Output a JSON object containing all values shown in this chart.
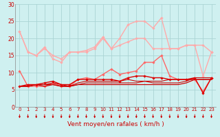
{
  "xlabel": "Vent moyen/en rafales ( km/h )",
  "bg_color": "#cff0f0",
  "grid_color": "#aad4d4",
  "x_values": [
    0,
    1,
    2,
    3,
    4,
    5,
    6,
    7,
    8,
    9,
    10,
    11,
    12,
    13,
    14,
    15,
    16,
    17,
    18,
    19,
    20,
    21,
    22,
    23
  ],
  "series": [
    {
      "color": "#ffaaaa",
      "linewidth": 1.0,
      "marker": "D",
      "markersize": 1.8,
      "data": [
        22,
        16,
        15,
        17,
        15,
        14,
        16,
        16,
        16,
        17,
        20,
        17,
        18,
        19,
        20,
        20,
        17,
        17,
        17,
        17,
        18,
        18,
        18,
        16
      ]
    },
    {
      "color": "#ffaaaa",
      "linewidth": 1.0,
      "marker": "D",
      "markersize": 1.8,
      "data": [
        22,
        16,
        15,
        17.5,
        14,
        13,
        16,
        16,
        16.5,
        17.5,
        20.5,
        17,
        20,
        24,
        25,
        25,
        23,
        26,
        17,
        17,
        18,
        18,
        9,
        16
      ]
    },
    {
      "color": "#ff6666",
      "linewidth": 1.0,
      "marker": "D",
      "markersize": 1.8,
      "data": [
        10.5,
        6,
        6,
        6,
        7,
        6,
        6,
        8,
        8.5,
        8,
        9.5,
        11,
        9.5,
        10,
        10.5,
        13,
        13,
        15,
        9,
        8,
        8,
        8,
        4.5,
        8.5
      ]
    },
    {
      "color": "#cc0000",
      "linewidth": 0.9,
      "marker": null,
      "markersize": 0,
      "data": [
        6,
        6,
        6.5,
        6,
        6.5,
        6,
        6,
        6.5,
        6.5,
        6.5,
        6.5,
        6.5,
        6.5,
        6.5,
        6.5,
        6.5,
        6.5,
        6.5,
        6.5,
        6.5,
        7,
        8,
        8,
        8
      ]
    },
    {
      "color": "#cc0000",
      "linewidth": 0.8,
      "marker": null,
      "markersize": 0,
      "data": [
        6,
        6,
        6.5,
        6.5,
        6.5,
        6,
        6,
        6.5,
        7,
        7,
        7,
        7,
        7,
        7,
        7,
        7.5,
        7,
        7,
        7,
        7,
        7.5,
        8.5,
        8.5,
        8.5
      ]
    },
    {
      "color": "#cc0000",
      "linewidth": 0.8,
      "marker": null,
      "markersize": 0,
      "data": [
        6,
        6,
        6.5,
        6.5,
        7,
        6.5,
        6,
        7,
        7.5,
        7.5,
        7.5,
        7.5,
        7.5,
        8,
        7.5,
        7.5,
        7.5,
        7.5,
        8,
        8,
        8,
        8,
        8,
        8
      ]
    },
    {
      "color": "#dd0000",
      "linewidth": 1.0,
      "marker": "D",
      "markersize": 1.8,
      "data": [
        6,
        6.5,
        6.5,
        7,
        7.5,
        6.5,
        6.5,
        8,
        8,
        8,
        8,
        8,
        7.5,
        8.5,
        9,
        9,
        8.5,
        8.5,
        8,
        8,
        8,
        8.5,
        4,
        8.5
      ]
    }
  ],
  "ylim": [
    0,
    30
  ],
  "yticks": [
    0,
    5,
    10,
    15,
    20,
    25,
    30
  ],
  "xlim": [
    -0.5,
    23.5
  ],
  "arrow_color": "#cc0000",
  "tick_fontsize": 5.0,
  "xlabel_fontsize": 6.5
}
